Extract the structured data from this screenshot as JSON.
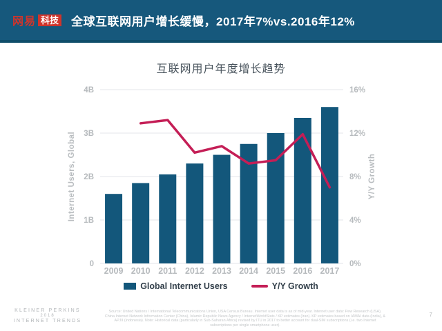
{
  "header": {
    "logo_primary": "网易",
    "logo_secondary": "科技",
    "title": "全球互联网用户增长缓慢，2017年7%vs.2016年12%",
    "bg_color": "#16587C",
    "logo_red": "#D0342B"
  },
  "chart_data": {
    "type": "bar",
    "subtype": "bar-line-combo",
    "title": "互联网用户年度增长趋势",
    "categories": [
      "2009",
      "2010",
      "2011",
      "2012",
      "2013",
      "2014",
      "2015",
      "2016",
      "2017"
    ],
    "series": [
      {
        "name": "Global Internet Users",
        "render": "bar",
        "axis": "left",
        "unit": "billions",
        "color": "#13577B",
        "values": [
          1.6,
          1.85,
          2.05,
          2.3,
          2.5,
          2.75,
          3.0,
          3.35,
          3.6
        ]
      },
      {
        "name": "Y/Y Growth",
        "render": "line",
        "axis": "right",
        "unit": "percent",
        "color": "#C41E56",
        "values": [
          null,
          12.9,
          13.2,
          10.2,
          10.8,
          9.2,
          9.5,
          11.9,
          7.0
        ]
      }
    ],
    "left_axis": {
      "label": "Internet Users, Global",
      "min": 0,
      "max": 4,
      "ticks": [
        "0",
        "1B",
        "2B",
        "3B",
        "4B"
      ]
    },
    "right_axis": {
      "label": "Y/Y Growth",
      "min": 0,
      "max": 16,
      "ticks": [
        "0%",
        "4%",
        "8%",
        "12%",
        "16%"
      ]
    },
    "grid": true,
    "grid_color": "#E3E6E8",
    "legend_position": "bottom"
  },
  "footer": {
    "brand_line1": "KLEINER PERKINS",
    "brand_line2": "2018",
    "brand_line3": "INTERNET TRENDS",
    "source_text": "Source: United Nations / International Telecommunications Union, USA Census Bureau. Internet user data is as of mid-year. Internet user data: Pew Research (USA), China Internet Network Information Center (China), Islamic Republic News Agency / InternetWorldStats / KP estimates (Iran). KP estimates based on IAMAI data (India), & APJII (Indonesia). Note: Historical data (particularly in Sub-Saharan Africa) revised by ITU in 2017 to better account for dual-SIM subscriptions (i.e. two Internet subscriptions per single smartphone user).",
    "page_number": "7"
  }
}
